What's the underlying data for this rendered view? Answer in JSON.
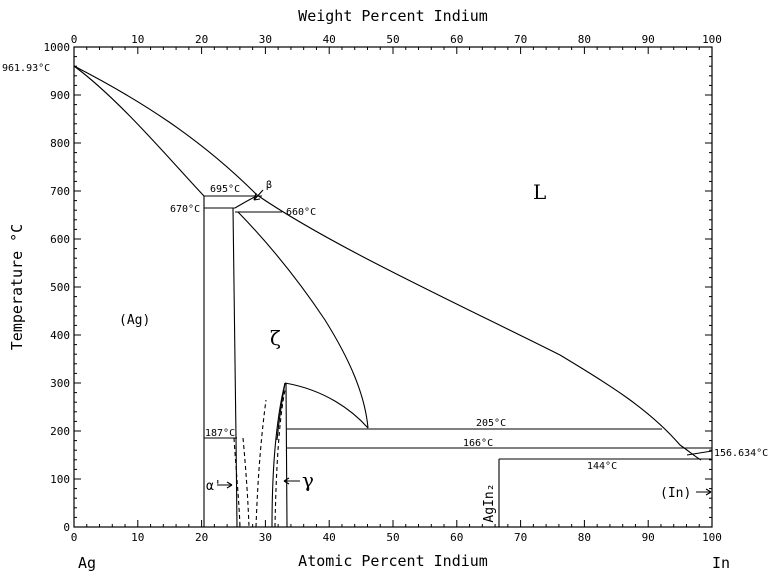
{
  "chart_data": {
    "type": "phase-diagram",
    "top_axis": {
      "title": "Weight Percent Indium",
      "ticks": [
        "0",
        "10",
        "20",
        "30",
        "40",
        "50",
        "60",
        "70",
        "80",
        "90",
        "100"
      ]
    },
    "bottom_axis": {
      "title": "Atomic Percent Indium",
      "ticks": [
        "0",
        "10",
        "20",
        "30",
        "40",
        "50",
        "60",
        "70",
        "80",
        "90",
        "100"
      ],
      "left_end": "Ag",
      "right_end": "In"
    },
    "left_axis": {
      "title": "Temperature °C",
      "ticks": [
        "0",
        "100",
        "200",
        "300",
        "400",
        "500",
        "600",
        "700",
        "800",
        "900",
        "1000"
      ],
      "range": [
        0,
        1000
      ]
    },
    "labels": {
      "ag_melt": "961.93°C",
      "t695": "695°C",
      "beta": "β",
      "t670": "670°C",
      "t660": "660°C",
      "L": "L",
      "ag_phase": "(Ag)",
      "zeta": "ζ",
      "t187": "187°C",
      "t205": "205°C",
      "t166": "166°C",
      "t144": "144°C",
      "in_melt": "156.634°C",
      "alpha_prime": "α'",
      "gamma": "γ",
      "agin2": "AgIn₂",
      "in_phase": "(In)"
    }
  }
}
